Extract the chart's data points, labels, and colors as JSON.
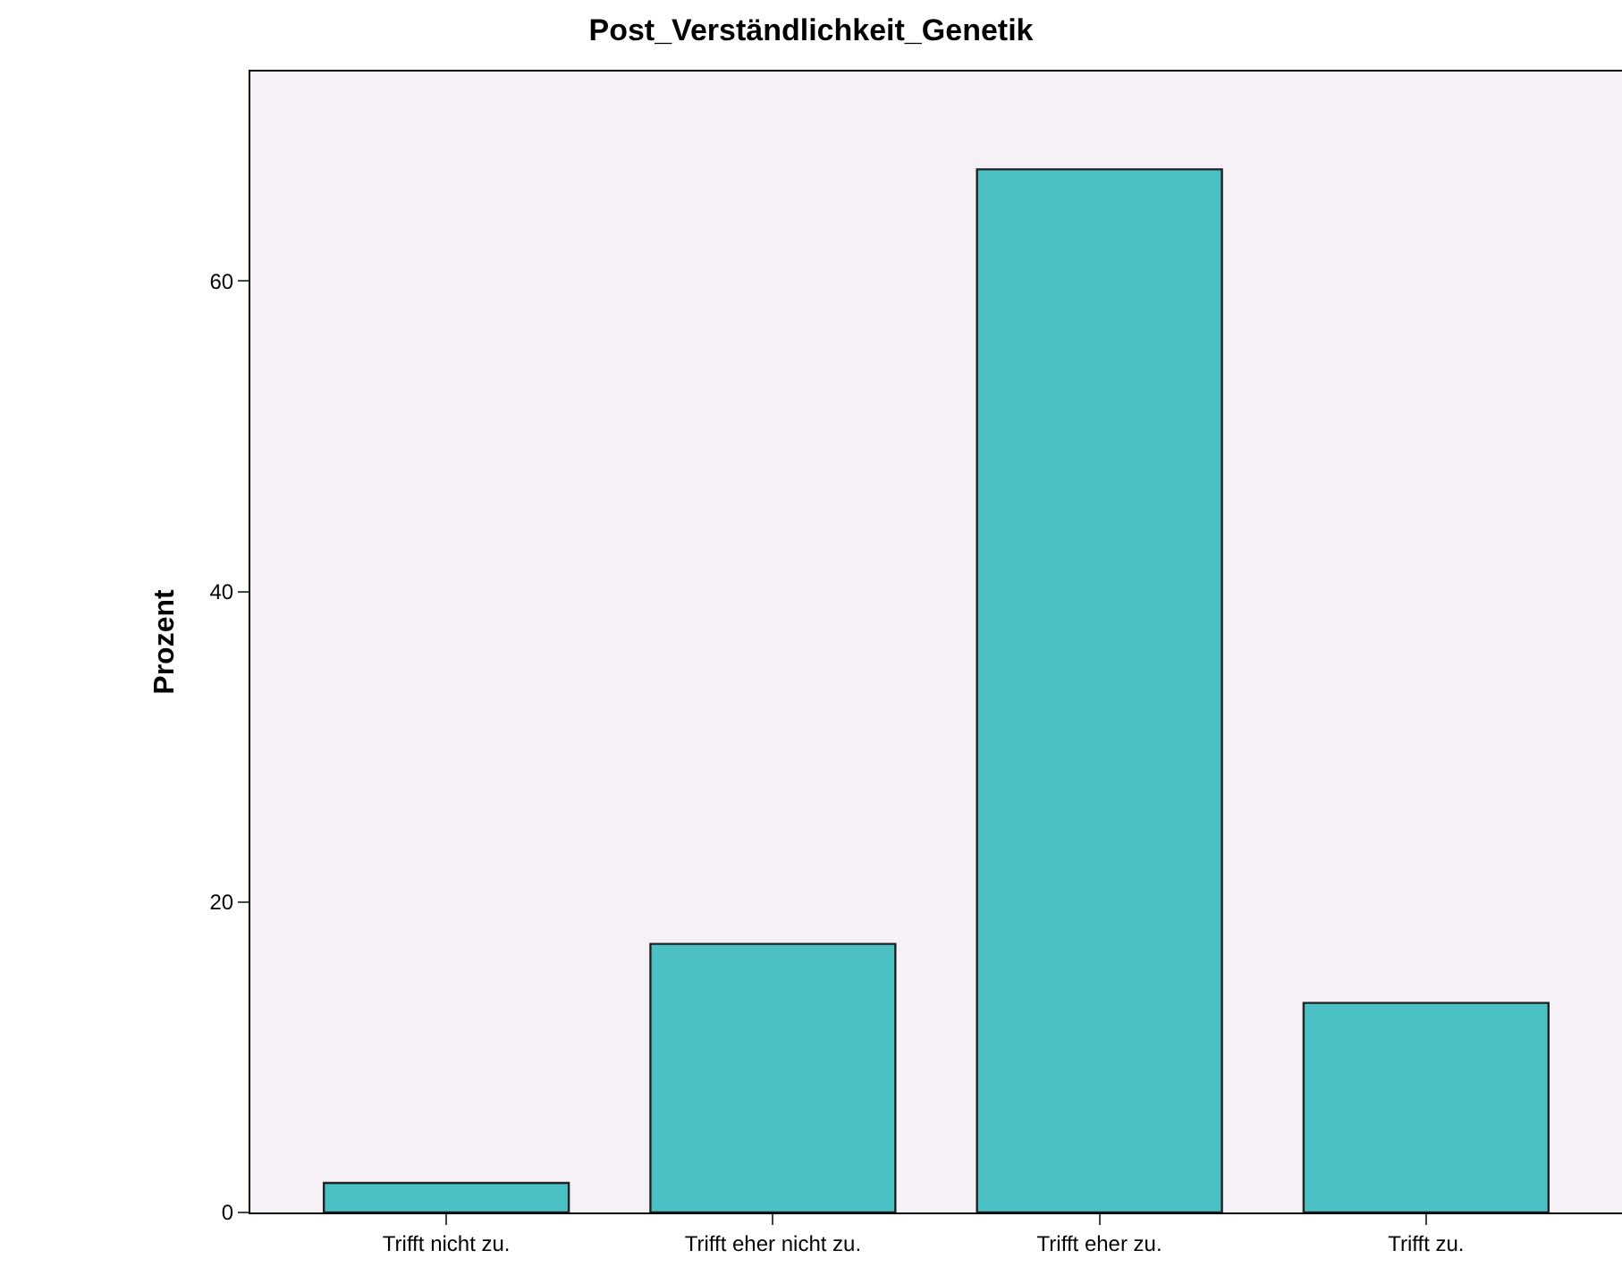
{
  "chart_data": {
    "type": "bar",
    "title": "Post_Verständlichkeit_Genetik",
    "ylabel": "Prozent",
    "categories": [
      "Trifft nicht zu.",
      "Trifft eher nicht zu.",
      "Trifft eher zu.",
      "Trifft zu."
    ],
    "values": [
      1.9,
      17.3,
      67.2,
      13.5
    ],
    "color": "#4bc1c5",
    "ylim": [
      0,
      73.5
    ],
    "yticks": [
      0,
      20,
      40,
      60
    ],
    "grid": false,
    "legend": false
  }
}
